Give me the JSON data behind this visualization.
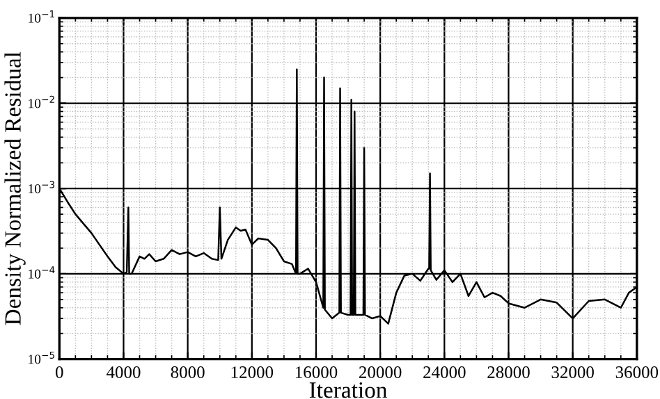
{
  "chart_data": {
    "type": "line",
    "xlabel": "Iteration",
    "ylabel": "Density Normalized Residual",
    "log": "y",
    "grid": true,
    "marker": "none",
    "line_style": "solid",
    "xlim": [
      0,
      36000
    ],
    "xticks": [
      0,
      4000,
      8000,
      12000,
      16000,
      20000,
      24000,
      28000,
      32000,
      36000
    ],
    "ylim": [
      1e-05,
      0.1
    ],
    "yticks": [
      {
        "value": 1e-05,
        "label": "10$^{−5}$"
      },
      {
        "value": 0.0001,
        "label": "10$^{−4}$"
      },
      {
        "value": 0.001,
        "label": "10$^{−3}$"
      },
      {
        "value": 0.01,
        "label": "10$^{−2}$"
      },
      {
        "value": 0.1,
        "label": "10$^{−1}$"
      }
    ],
    "series": [
      {
        "color": "#000000",
        "x": [
          0,
          500,
          1000,
          2000,
          3000,
          3500,
          4000,
          4200,
          4300,
          4350,
          4500,
          5000,
          5300,
          5600,
          6000,
          6500,
          7000,
          7500,
          8000,
          8500,
          9000,
          9500,
          9900,
          10000,
          10100,
          10500,
          11000,
          11300,
          11600,
          12000,
          12400,
          13000,
          13500,
          14000,
          14500,
          14750,
          14800,
          14850,
          15000,
          15500,
          16000,
          16450,
          16500,
          16550,
          17000,
          17450,
          17500,
          17550,
          18000,
          18150,
          18200,
          18250,
          18350,
          18400,
          18450,
          18500,
          18950,
          19000,
          19050,
          19500,
          20000,
          20500,
          21000,
          21500,
          22000,
          22500,
          23000,
          23050,
          23100,
          23150,
          23500,
          24000,
          24500,
          25000,
          25500,
          26000,
          26500,
          27000,
          27500,
          28000,
          29000,
          30000,
          31000,
          32000,
          33000,
          34000,
          35000,
          35500,
          36000
        ],
        "values": [
          0.001,
          0.0007,
          0.0005,
          0.0003,
          0.00016,
          0.00012,
          0.0001,
          0.000105,
          0.0006,
          0.0001,
          0.0001,
          0.00016,
          0.00015,
          0.00017,
          0.00014,
          0.00015,
          0.00019,
          0.00017,
          0.00018,
          0.00016,
          0.000175,
          0.00015,
          0.000145,
          0.0006,
          0.00015,
          0.00025,
          0.00035,
          0.00032,
          0.00033,
          0.00022,
          0.00026,
          0.00025,
          0.0002,
          0.00014,
          0.00013,
          0.0001,
          0.025,
          0.0001,
          0.0001,
          0.000115,
          8e-05,
          4e-05,
          0.02,
          3.8e-05,
          3e-05,
          3.5e-05,
          0.015,
          3.5e-05,
          3.3e-05,
          3.3e-05,
          0.011,
          3.3e-05,
          3.3e-05,
          0.008,
          3.3e-05,
          3.3e-05,
          3.3e-05,
          0.003,
          3.3e-05,
          3e-05,
          3.2e-05,
          2.6e-05,
          6e-05,
          9.5e-05,
          0.0001,
          8.3e-05,
          0.000115,
          0.000115,
          0.0015,
          0.00011,
          8.5e-05,
          0.00011,
          8e-05,
          0.0001,
          5.5e-05,
          8e-05,
          5.3e-05,
          6e-05,
          5.5e-05,
          4.5e-05,
          4e-05,
          5e-05,
          4.6e-05,
          3e-05,
          4.8e-05,
          5e-05,
          4e-05,
          6e-05,
          7e-05
        ]
      }
    ]
  }
}
